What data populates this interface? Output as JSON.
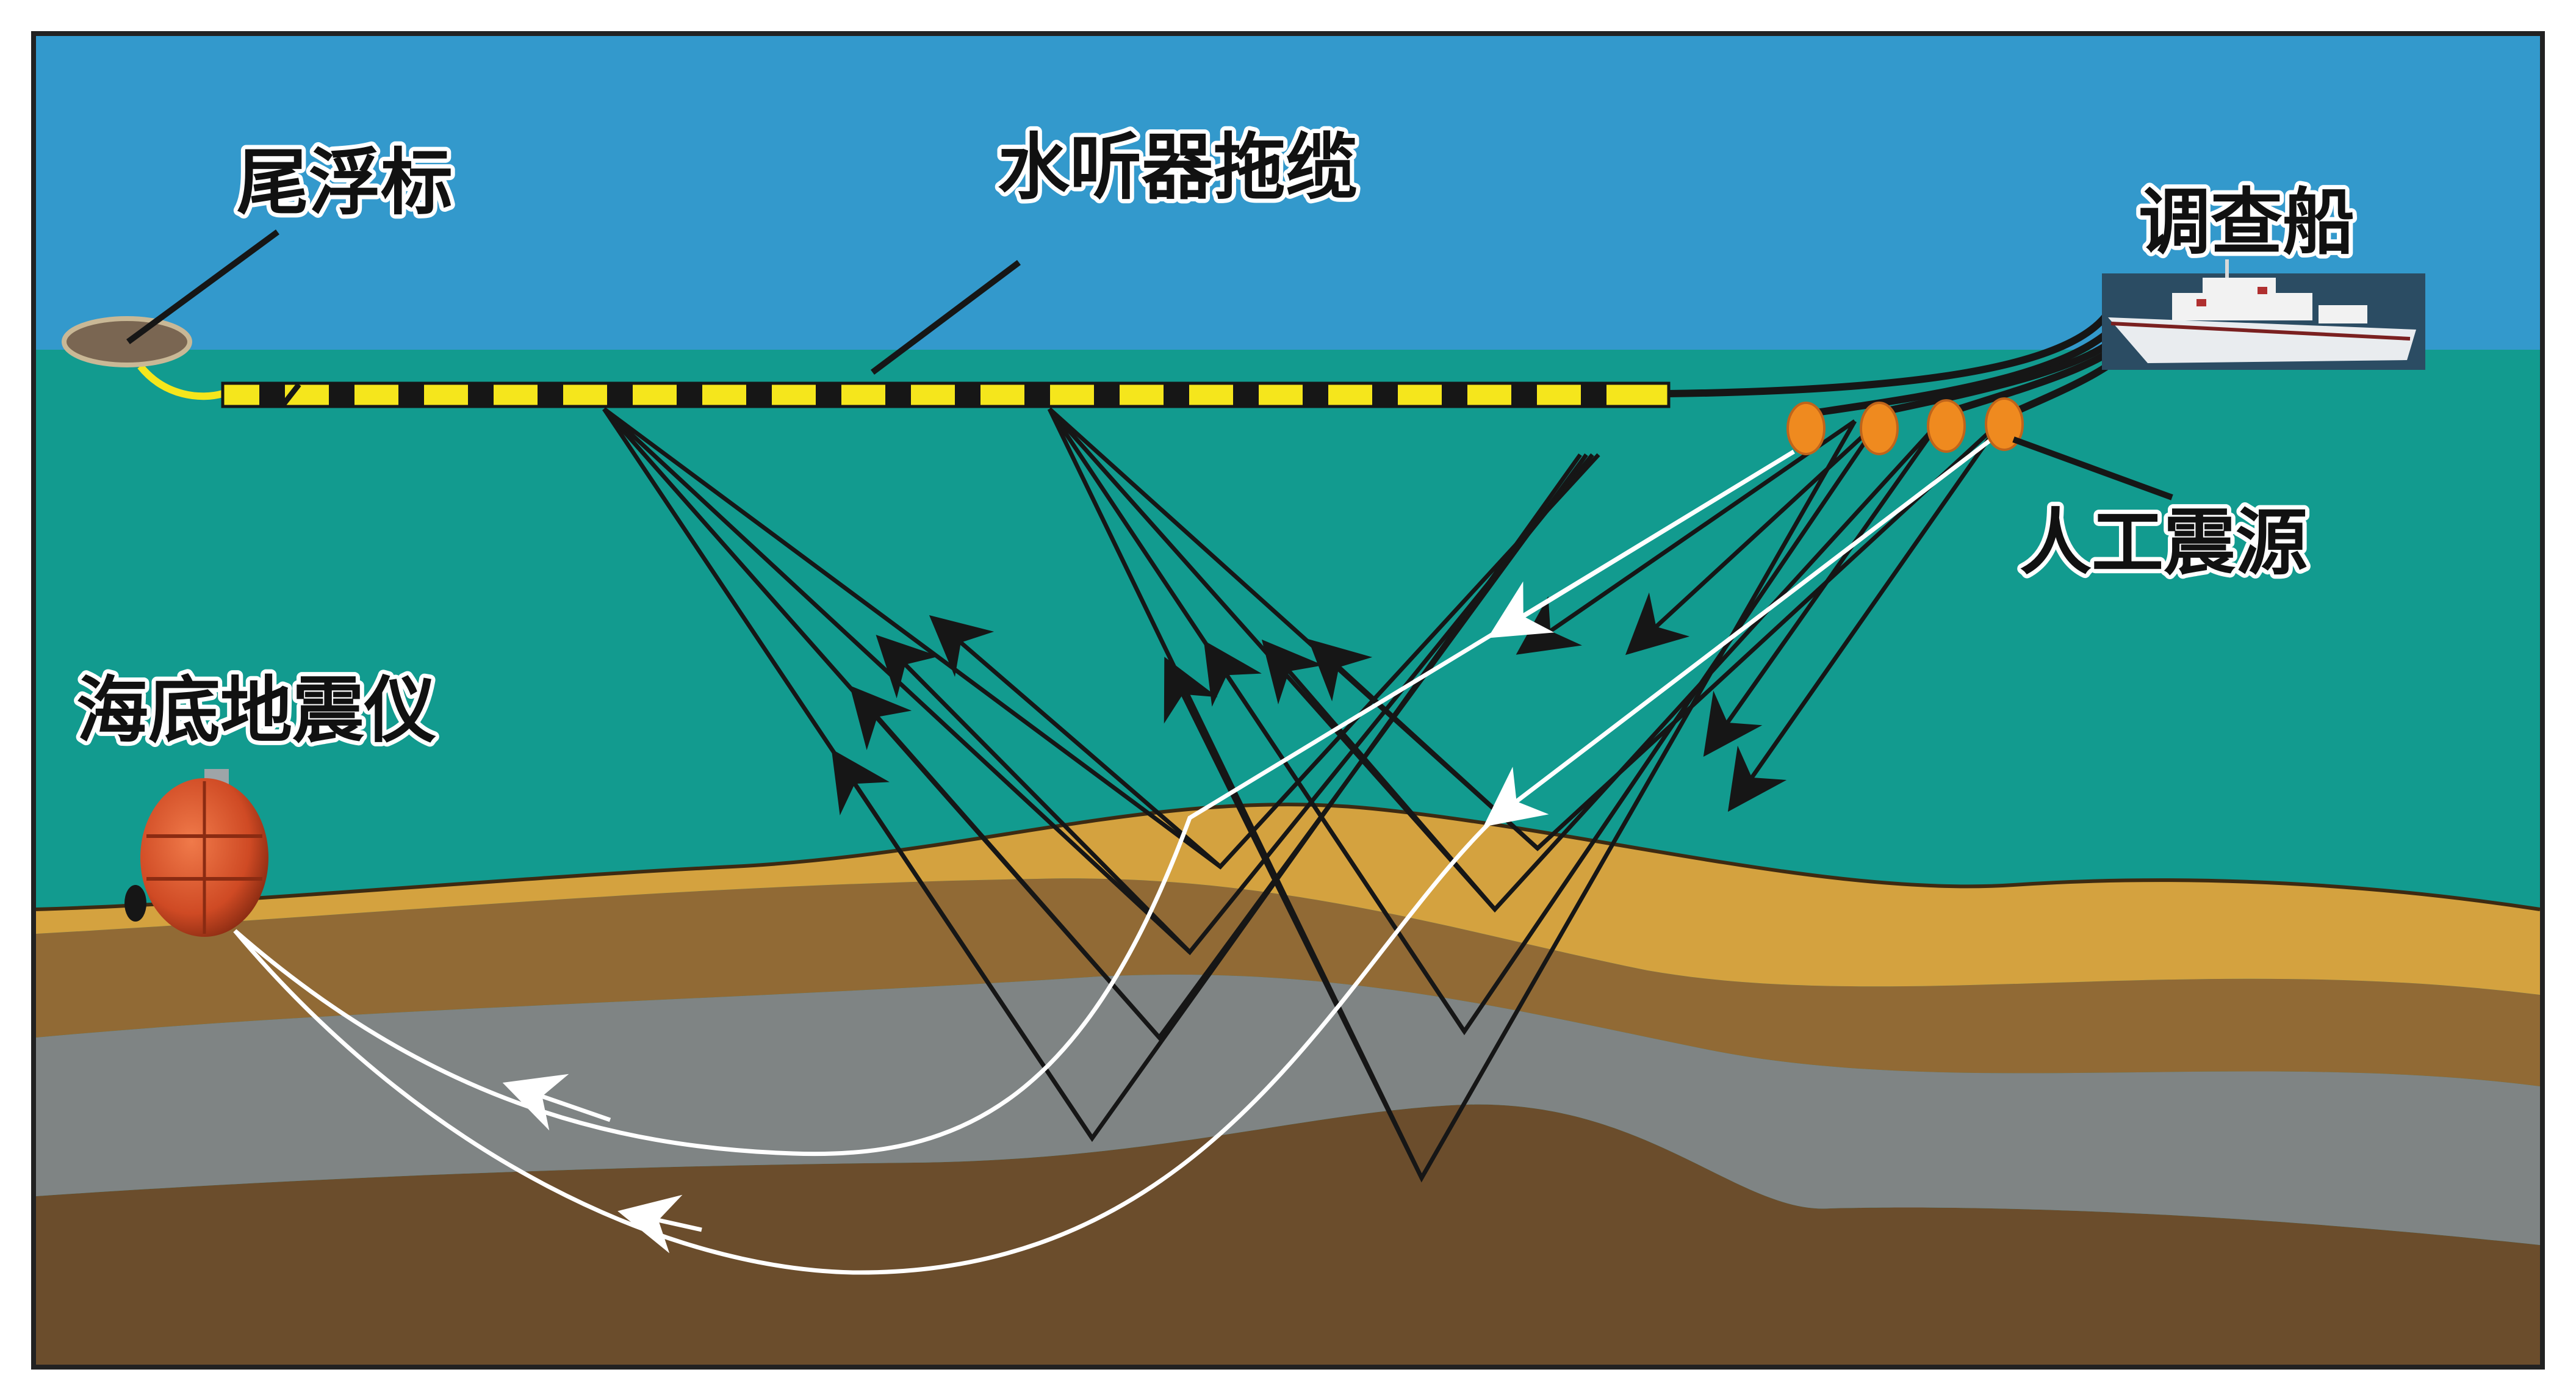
{
  "labels": {
    "tail_buoy": "尾浮标",
    "hydrophone_streamer": "水听器拖缆",
    "survey_ship": "调查船",
    "artificial_source": "人工震源",
    "obs": "海底地震仪"
  },
  "colors": {
    "sky": "#3399cc",
    "sea": "#129b8f",
    "sediment_top": "#d4a23f",
    "sediment_mid": "#916a35",
    "gray_layer": "#7f8484",
    "basement": "#6b4d2c",
    "streamer_yellow": "#f5e61c",
    "source_orange": "#ef8a1f",
    "obs_red": "#d9532e",
    "ray_black": "#161616",
    "ray_white": "#ffffff"
  },
  "icons": {
    "tail_buoy": "buoy-icon",
    "ship": "ship-icon",
    "source": "airgun-source-icon",
    "obs": "seismometer-icon"
  }
}
